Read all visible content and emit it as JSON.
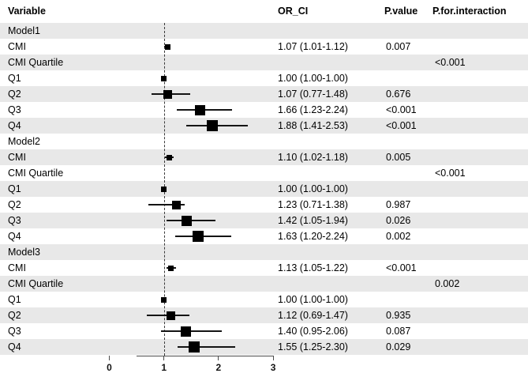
{
  "figure": {
    "columns": {
      "variable": "Variable",
      "or_ci": "OR_CI",
      "p_value": "P.value",
      "p_interaction": "P.for.interaction"
    }
  },
  "chart_data": {
    "type": "forest",
    "title": "",
    "xlabel": "",
    "x_ticks": [
      0,
      1,
      2,
      3
    ],
    "x_range": [
      0,
      3
    ],
    "axis_line_span": [
      0.5,
      3
    ],
    "reference_line": 1,
    "legend": null,
    "grid": false,
    "columns": [
      "Variable",
      "OR_CI",
      "P.value",
      "P.for.interaction"
    ],
    "rows": [
      {
        "label": "Model1",
        "section": true,
        "or_ci": "",
        "p_value": "",
        "p_interaction": ""
      },
      {
        "label": "CMI",
        "or_ci": "1.07 (1.01-1.12)",
        "p_value": "0.007",
        "p_interaction": "",
        "est": 1.07,
        "lo": 1.01,
        "hi": 1.12,
        "size": 7
      },
      {
        "label": "CMI Quartile",
        "section": true,
        "or_ci": "",
        "p_value": "",
        "p_interaction": "<0.001"
      },
      {
        "label": "Q1",
        "or_ci": "1.00 (1.00-1.00)",
        "p_value": "",
        "p_interaction": "",
        "est": 1.0,
        "lo": 1.0,
        "hi": 1.0,
        "size": 7
      },
      {
        "label": "Q2",
        "or_ci": "1.07 (0.77-1.48)",
        "p_value": "0.676",
        "p_interaction": "",
        "est": 1.07,
        "lo": 0.77,
        "hi": 1.48,
        "size": 11
      },
      {
        "label": "Q3",
        "or_ci": "1.66 (1.23-2.24)",
        "p_value": "<0.001",
        "p_interaction": "",
        "est": 1.66,
        "lo": 1.23,
        "hi": 2.24,
        "size": 13
      },
      {
        "label": "Q4",
        "or_ci": "1.88 (1.41-2.53)",
        "p_value": "<0.001",
        "p_interaction": "",
        "est": 1.88,
        "lo": 1.41,
        "hi": 2.53,
        "size": 14
      },
      {
        "label": "Model2",
        "section": true,
        "or_ci": "",
        "p_value": "",
        "p_interaction": ""
      },
      {
        "label": "CMI",
        "or_ci": "1.10 (1.02-1.18)",
        "p_value": "0.005",
        "p_interaction": "",
        "est": 1.1,
        "lo": 1.02,
        "hi": 1.18,
        "size": 7
      },
      {
        "label": "CMI Quartile",
        "section": true,
        "or_ci": "",
        "p_value": "",
        "p_interaction": "<0.001"
      },
      {
        "label": "Q1",
        "or_ci": "1.00 (1.00-1.00)",
        "p_value": "",
        "p_interaction": "",
        "est": 1.0,
        "lo": 1.0,
        "hi": 1.0,
        "size": 7
      },
      {
        "label": "Q2",
        "or_ci": "1.23 (0.71-1.38)",
        "p_value": "0.987",
        "p_interaction": "",
        "est": 1.23,
        "lo": 0.71,
        "hi": 1.38,
        "size": 11
      },
      {
        "label": "Q3",
        "or_ci": "1.42 (1.05-1.94)",
        "p_value": "0.026",
        "p_interaction": "",
        "est": 1.42,
        "lo": 1.05,
        "hi": 1.94,
        "size": 13
      },
      {
        "label": "Q4",
        "or_ci": "1.63 (1.20-2.24)",
        "p_value": "0.002",
        "p_interaction": "",
        "est": 1.63,
        "lo": 1.2,
        "hi": 2.24,
        "size": 14
      },
      {
        "label": "Model3",
        "section": true,
        "or_ci": "",
        "p_value": "",
        "p_interaction": ""
      },
      {
        "label": "CMI",
        "or_ci": "1.13 (1.05-1.22)",
        "p_value": "<0.001",
        "p_interaction": "",
        "est": 1.13,
        "lo": 1.05,
        "hi": 1.22,
        "size": 7
      },
      {
        "label": "CMI Quartile",
        "section": true,
        "or_ci": "",
        "p_value": "",
        "p_interaction": "0.002"
      },
      {
        "label": "Q1",
        "or_ci": "1.00 (1.00-1.00)",
        "p_value": "",
        "p_interaction": "",
        "est": 1.0,
        "lo": 1.0,
        "hi": 1.0,
        "size": 7
      },
      {
        "label": "Q2",
        "or_ci": "1.12 (0.69-1.47)",
        "p_value": "0.935",
        "p_interaction": "",
        "est": 1.12,
        "lo": 0.69,
        "hi": 1.47,
        "size": 11
      },
      {
        "label": "Q3",
        "or_ci": "1.40 (0.95-2.06)",
        "p_value": "0.087",
        "p_interaction": "",
        "est": 1.4,
        "lo": 0.95,
        "hi": 2.06,
        "size": 13
      },
      {
        "label": "Q4",
        "or_ci": "1.55 (1.25-2.30)",
        "p_value": "0.029",
        "p_interaction": "",
        "est": 1.55,
        "lo": 1.25,
        "hi": 2.3,
        "size": 14
      }
    ],
    "colors": {
      "stripe": "#e8e8e8",
      "marker": "#000000",
      "ci_line": "#141414",
      "axis": "#4d4d4d",
      "reference_line": "#3a3a3a",
      "text": "#000000"
    }
  }
}
